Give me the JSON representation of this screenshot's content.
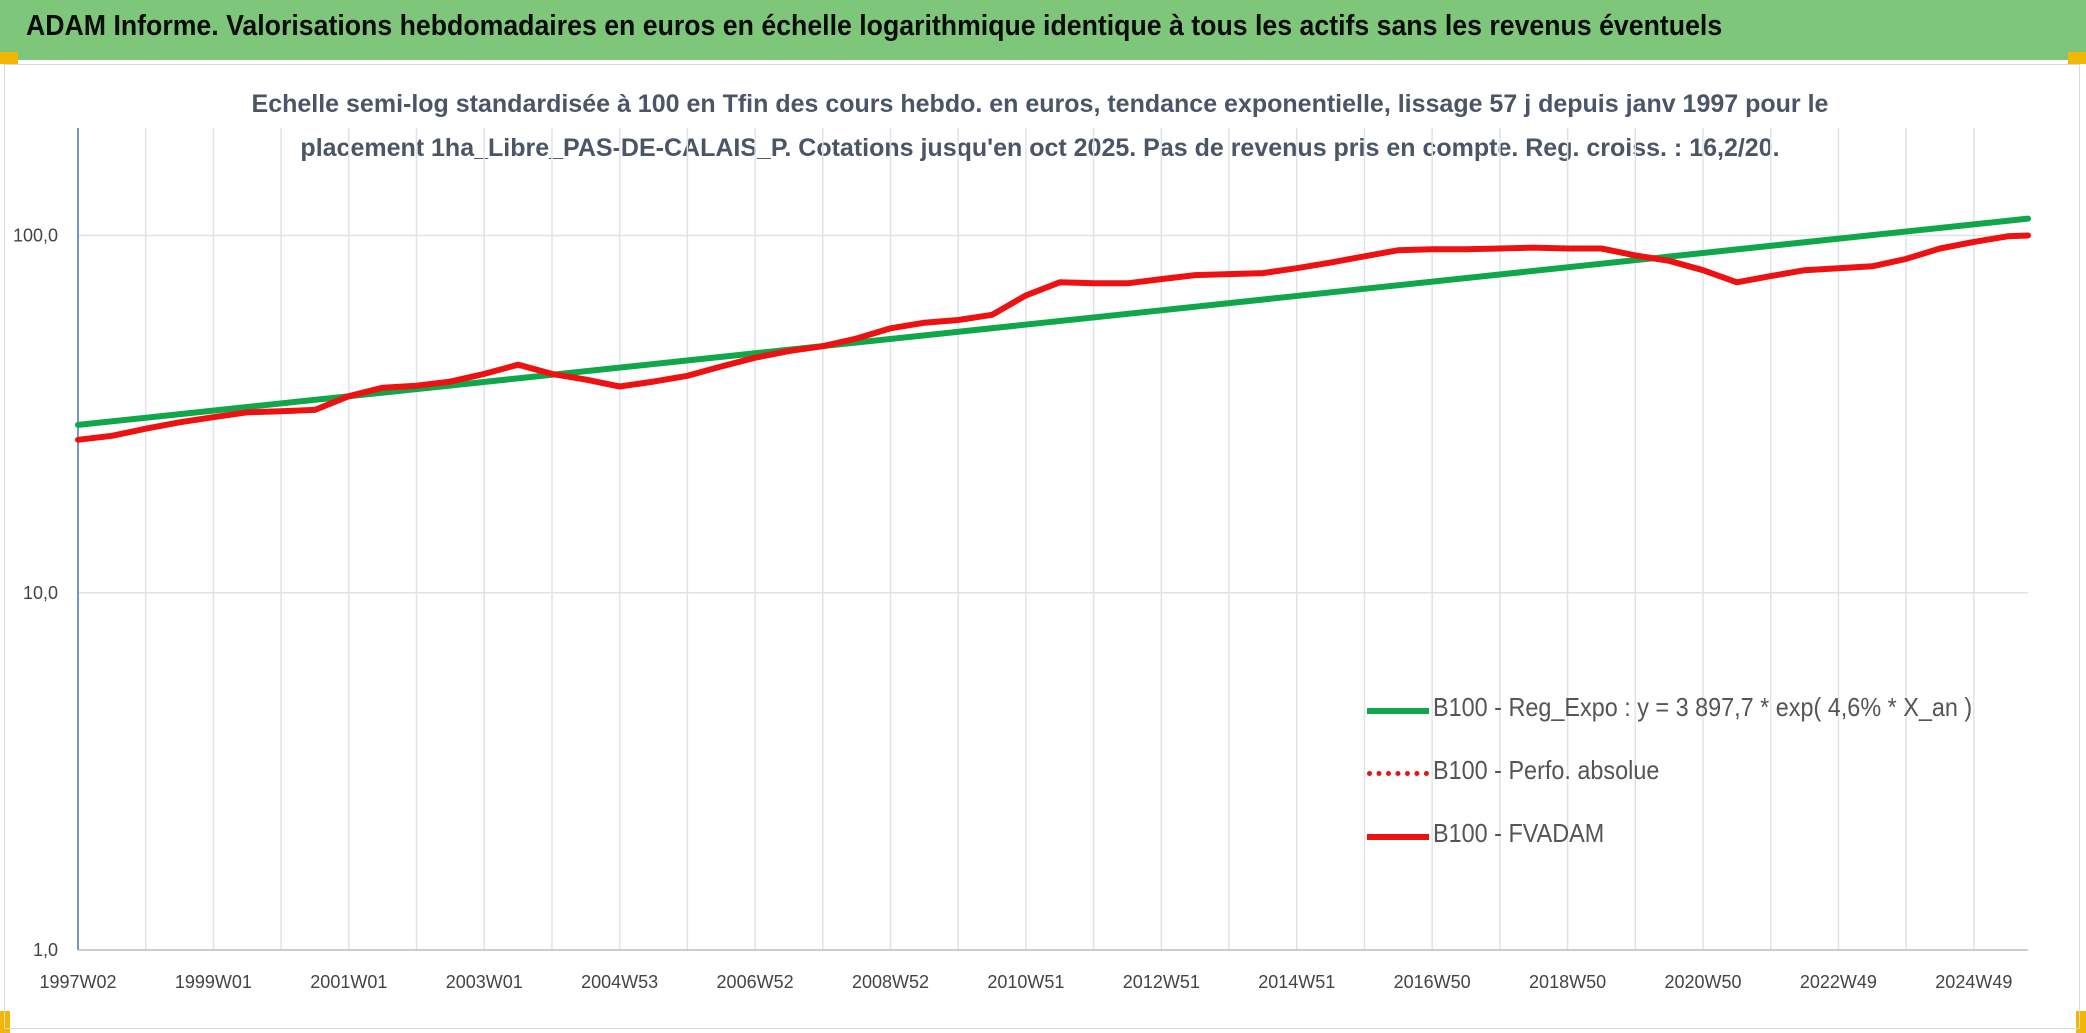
{
  "header": {
    "title": "ADAM Informe. Valorisations hebdomadaires en euros en échelle logarithmique identique à tous les actifs sans les revenus éventuels"
  },
  "colors": {
    "header_bg": "#7dc67a",
    "accent": "#f2b705",
    "green_series": "#10a64a",
    "red_series": "#ee1111"
  },
  "chart_data": {
    "type": "line",
    "title_line1": "Echelle semi-log standardisée à 100 en Tfin des cours hebdo. en euros, tendance exponentielle, lissage 57 j depuis janv 1997 pour le",
    "title_line2": "placement 1ha_Libre_PAS-DE-CALAIS_P. Cotations jusqu'en oct 2025. Pas de revenus pris en compte. Reg. croiss. : 16,2/20.",
    "yscale": "log",
    "ylim": [
      1,
      200
    ],
    "yticks": [
      1,
      10,
      100
    ],
    "ytick_labels": [
      "1,0",
      "10,0",
      "100,0"
    ],
    "xlim": [
      1997.0,
      2025.8
    ],
    "xtick_labels": [
      "1997W02",
      "1999W01",
      "2001W01",
      "2003W01",
      "2004W53",
      "2006W52",
      "2008W52",
      "2010W51",
      "2012W51",
      "2014W51",
      "2016W50",
      "2018W50",
      "2020W50",
      "2022W49",
      "2024W49"
    ],
    "xtick_positions": [
      1997.0,
      1999.0,
      2001.0,
      2003.0,
      2005.0,
      2007.0,
      2009.0,
      2011.0,
      2013.0,
      2015.0,
      2017.0,
      2019.0,
      2021.0,
      2023.0,
      2025.0
    ],
    "grid": true,
    "legend_position": "bottom-right",
    "series": [
      {
        "name": "B100 - Reg_Expo : y = 3 897,7 * exp( 4,6% *  X_an )",
        "style": "solid-green",
        "x": [
          1997.0,
          2025.8
        ],
        "y": [
          29.5,
          111.5
        ]
      },
      {
        "name": "B100 - Perfo. absolue",
        "style": "dotted-red",
        "x": [],
        "y": []
      },
      {
        "name": "B100 - FVADAM",
        "style": "solid-red",
        "x": [
          1997.0,
          1997.5,
          1998.0,
          1998.5,
          1999.0,
          1999.5,
          2000.0,
          2000.5,
          2001.0,
          2001.5,
          2002.0,
          2002.5,
          2003.0,
          2003.5,
          2004.0,
          2004.5,
          2005.0,
          2005.5,
          2006.0,
          2006.5,
          2007.0,
          2007.5,
          2008.0,
          2008.5,
          2009.0,
          2009.5,
          2010.0,
          2010.5,
          2011.0,
          2011.5,
          2012.0,
          2012.5,
          2013.0,
          2013.5,
          2014.0,
          2014.5,
          2015.0,
          2015.5,
          2016.0,
          2016.5,
          2017.0,
          2017.5,
          2018.0,
          2018.5,
          2019.0,
          2019.5,
          2020.0,
          2020.5,
          2021.0,
          2021.5,
          2022.0,
          2022.5,
          2023.0,
          2023.5,
          2024.0,
          2024.5,
          2025.0,
          2025.5,
          2025.8
        ],
        "y": [
          26.8,
          27.5,
          28.8,
          30.0,
          31.0,
          32.0,
          32.2,
          32.5,
          35.5,
          37.5,
          38.0,
          39.0,
          41.0,
          43.5,
          41.0,
          39.5,
          37.8,
          39.0,
          40.5,
          43.0,
          45.5,
          47.5,
          49.0,
          51.5,
          55.0,
          57.0,
          58.0,
          60.0,
          68.0,
          74.0,
          73.5,
          73.5,
          75.5,
          77.5,
          78.0,
          78.5,
          81.0,
          84.0,
          87.5,
          91.0,
          91.5,
          91.5,
          92.0,
          92.5,
          92.0,
          92.0,
          88.0,
          85.0,
          80.0,
          74.0,
          77.0,
          80.0,
          81.0,
          82.0,
          86.0,
          92.0,
          96.0,
          99.5,
          100.0
        ]
      }
    ]
  }
}
